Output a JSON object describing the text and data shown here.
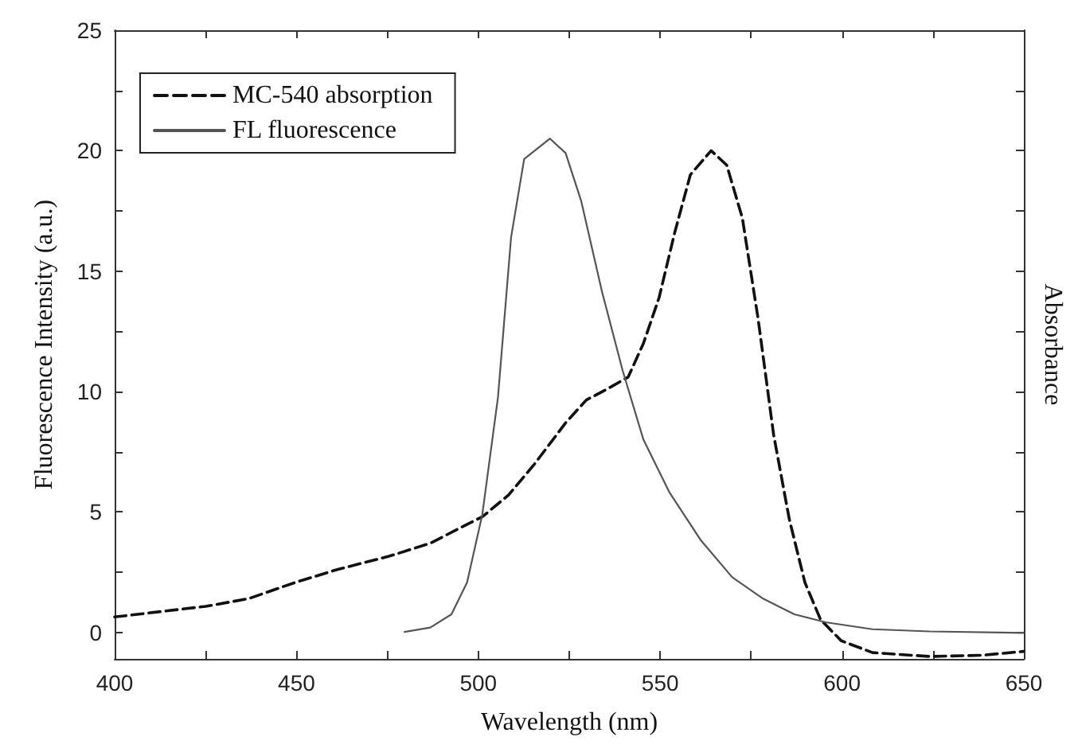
{
  "chart_data": {
    "type": "line",
    "xlabel": "Wavelength (nm)",
    "ylabel": "Fluorescence Intensity (a.u.)",
    "y2label": "Absorbance",
    "xlim": [
      400,
      650
    ],
    "xticks": [
      400,
      {
        "value": 425,
        "label": null
      },
      450,
      {
        "value": 475,
        "label": null
      },
      500,
      {
        "value": 525,
        "label": null
      },
      550,
      {
        "value": 575,
        "label": null
      },
      600,
      {
        "value": 625,
        "label": null
      },
      650
    ],
    "ylim": [
      -1.1,
      25
    ],
    "yticks": [
      0,
      {
        "value": 2.5,
        "label": null
      },
      5,
      {
        "value": 7.5,
        "label": null
      },
      10,
      {
        "value": 12.5,
        "label": null
      },
      15,
      {
        "value": 17.5,
        "label": null
      },
      20,
      {
        "value": 22.5,
        "label": null
      },
      25
    ],
    "legend": "top left",
    "grid": false,
    "marker": "none",
    "series": [
      {
        "name": "MC-540 absorption",
        "color": "#111111",
        "line_style": "dashed",
        "x": [
          400,
          425,
          436.8,
          449.6,
          461,
          475.4,
          486.8,
          495.4,
          501.1,
          508.3,
          515.5,
          524,
          529.7,
          535.4,
          541.2,
          545.4,
          549.7,
          554,
          558.3,
          564,
          568.3,
          572.6,
          576.9,
          581.2,
          585.5,
          589.8,
          594.1,
          599.8,
          608.4,
          624.1,
          638.4,
          649.9
        ],
        "values": [
          0.64,
          1.08,
          1.4,
          2.07,
          2.6,
          3.16,
          3.7,
          4.37,
          4.8,
          5.7,
          7.0,
          8.7,
          9.65,
          10.1,
          10.6,
          12.0,
          13.9,
          16.6,
          19.0,
          20.0,
          19.4,
          17.2,
          13.05,
          8.2,
          4.7,
          2.07,
          0.53,
          -0.35,
          -0.84,
          -1.0,
          -0.95,
          -0.79
        ]
      },
      {
        "name": "FL fluorescence",
        "color": "#555555",
        "line_style": "solid",
        "x": [
          479.7,
          486.8,
          492.6,
          496.9,
          501.1,
          505.4,
          509,
          512.6,
          519.7,
          524,
          528.3,
          534,
          539.7,
          545.4,
          552.6,
          561.2,
          569.8,
          578.3,
          586.9,
          595.5,
          608.4,
          624.1,
          649.9
        ],
        "values": [
          0.02,
          0.2,
          0.75,
          2.07,
          4.9,
          9.76,
          16.4,
          19.65,
          20.5,
          19.9,
          17.9,
          14.15,
          10.86,
          8.0,
          5.8,
          3.82,
          2.29,
          1.4,
          0.75,
          0.42,
          0.13,
          0.04,
          -0.02
        ]
      }
    ]
  }
}
